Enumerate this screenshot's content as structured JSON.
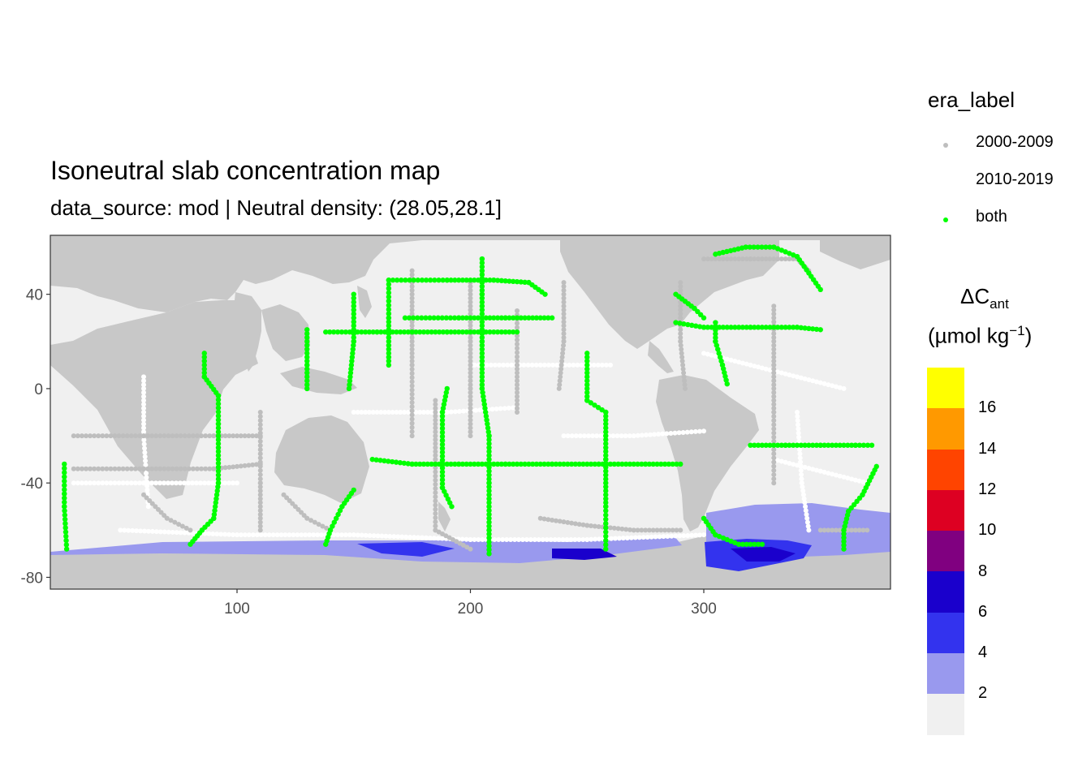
{
  "title": "Isoneutral slab concentration map",
  "subtitle": "data_source: mod | Neutral density: (28.05,28.1]",
  "chart_data": {
    "type": "scatter",
    "title": "Isoneutral slab concentration map",
    "subtitle": "data_source: mod | Neutral density: (28.05,28.1]",
    "xlim": [
      20,
      380
    ],
    "ylim": [
      -85,
      65
    ],
    "x_ticks": [
      100,
      200,
      300
    ],
    "x_tick_labels": [
      "100",
      "200",
      "300"
    ],
    "y_ticks": [
      40,
      0,
      -40,
      -80
    ],
    "y_tick_labels": [
      "40",
      "0",
      "-40",
      "-80"
    ],
    "grid": false,
    "legend_era": {
      "title": "era_label",
      "placement": "right",
      "entries": [
        {
          "label": "2000-2009",
          "color": "#bebebe"
        },
        {
          "label": "2010-2019",
          "color": "#ffffff"
        },
        {
          "label": "both",
          "color": "#00ff00"
        }
      ]
    },
    "colorbar": {
      "title_main": "ΔC",
      "title_sub": "ant",
      "unit_main": "(µmol kg",
      "unit_sup": "−1",
      "unit_close": ")",
      "colors": [
        "#f0f0f0",
        "#9999ee",
        "#3333ee",
        "#1a00cc",
        "#800080",
        "#dd0022",
        "#ff4400",
        "#ff9900",
        "#ffff00"
      ],
      "tick_labels": [
        "2",
        "4",
        "6",
        "8",
        "10",
        "12",
        "14",
        "16"
      ]
    },
    "tracks_both": [
      [
        [
          26,
          -32
        ],
        [
          26,
          -50
        ],
        [
          27,
          -68
        ]
      ],
      [
        [
          86,
          15
        ],
        [
          86,
          5
        ],
        [
          92,
          -3
        ],
        [
          92,
          -15
        ],
        [
          92,
          -40
        ],
        [
          90,
          -55
        ],
        [
          85,
          -60
        ],
        [
          80,
          -66
        ]
      ],
      [
        [
          150,
          -43
        ],
        [
          145,
          -50
        ],
        [
          140,
          -60
        ],
        [
          138,
          -66
        ]
      ],
      [
        [
          138,
          24
        ],
        [
          150,
          24
        ],
        [
          160,
          24
        ],
        [
          175,
          24
        ],
        [
          190,
          24
        ],
        [
          205,
          24
        ],
        [
          220,
          24
        ]
      ],
      [
        [
          165,
          46
        ],
        [
          190,
          46
        ],
        [
          210,
          46
        ],
        [
          225,
          45
        ],
        [
          232,
          40
        ]
      ],
      [
        [
          205,
          55
        ],
        [
          205,
          40
        ],
        [
          205,
          20
        ],
        [
          205,
          0
        ],
        [
          208,
          -20
        ],
        [
          208,
          -40
        ],
        [
          208,
          -60
        ],
        [
          208,
          -70
        ]
      ],
      [
        [
          190,
          0
        ],
        [
          188,
          -10
        ],
        [
          188,
          -22
        ],
        [
          188,
          -32
        ],
        [
          188,
          -42
        ],
        [
          192,
          -50
        ]
      ],
      [
        [
          158,
          -30
        ],
        [
          175,
          -32
        ],
        [
          195,
          -32
        ],
        [
          215,
          -32
        ],
        [
          235,
          -32
        ],
        [
          255,
          -32
        ],
        [
          275,
          -32
        ],
        [
          290,
          -32
        ]
      ],
      [
        [
          250,
          15
        ],
        [
          250,
          -5
        ],
        [
          258,
          -10
        ],
        [
          258,
          -30
        ],
        [
          258,
          -50
        ],
        [
          258,
          -68
        ]
      ],
      [
        [
          172,
          30
        ],
        [
          195,
          30
        ],
        [
          215,
          30
        ],
        [
          235,
          30
        ]
      ],
      [
        [
          130,
          25
        ],
        [
          130,
          10
        ],
        [
          130,
          0
        ]
      ],
      [
        [
          150,
          40
        ],
        [
          150,
          20
        ],
        [
          148,
          0
        ]
      ],
      [
        [
          165,
          46
        ],
        [
          165,
          30
        ],
        [
          165,
          10
        ]
      ],
      [
        [
          288,
          28
        ],
        [
          300,
          26
        ],
        [
          320,
          26
        ],
        [
          340,
          26
        ],
        [
          350,
          25
        ]
      ],
      [
        [
          305,
          57
        ],
        [
          318,
          60
        ],
        [
          330,
          60
        ],
        [
          340,
          56
        ],
        [
          350,
          42
        ]
      ],
      [
        [
          305,
          28
        ],
        [
          305,
          20
        ],
        [
          308,
          10
        ],
        [
          310,
          2
        ]
      ],
      [
        [
          320,
          -24
        ],
        [
          335,
          -24
        ],
        [
          350,
          -24
        ],
        [
          365,
          -24
        ],
        [
          372,
          -24
        ]
      ],
      [
        [
          374,
          -33
        ],
        [
          368,
          -45
        ],
        [
          362,
          -52
        ],
        [
          360,
          -60
        ],
        [
          360,
          -68
        ]
      ],
      [
        [
          300,
          -55
        ],
        [
          305,
          -62
        ],
        [
          315,
          -66
        ],
        [
          325,
          -66
        ]
      ],
      [
        [
          288,
          40
        ],
        [
          296,
          34
        ],
        [
          300,
          30
        ]
      ]
    ],
    "tracks_2000_2009": [
      [
        [
          30,
          -20
        ],
        [
          60,
          -20
        ],
        [
          90,
          -20
        ],
        [
          110,
          -20
        ]
      ],
      [
        [
          30,
          -34
        ],
        [
          60,
          -34
        ],
        [
          90,
          -34
        ],
        [
          110,
          -32
        ]
      ],
      [
        [
          220,
          33
        ],
        [
          220,
          10
        ],
        [
          220,
          -10
        ]
      ],
      [
        [
          185,
          -5
        ],
        [
          185,
          -30
        ],
        [
          185,
          -60
        ],
        [
          200,
          -68
        ]
      ],
      [
        [
          290,
          45
        ],
        [
          290,
          20
        ],
        [
          292,
          0
        ]
      ],
      [
        [
          330,
          35
        ],
        [
          330,
          10
        ],
        [
          330,
          -10
        ],
        [
          330,
          -40
        ]
      ],
      [
        [
          110,
          -10
        ],
        [
          110,
          -40
        ],
        [
          110,
          -60
        ]
      ],
      [
        [
          200,
          45
        ],
        [
          200,
          20
        ],
        [
          200,
          0
        ],
        [
          200,
          -20
        ]
      ],
      [
        [
          175,
          50
        ],
        [
          175,
          30
        ],
        [
          175,
          10
        ],
        [
          175,
          -20
        ]
      ],
      [
        [
          240,
          45
        ],
        [
          240,
          20
        ],
        [
          238,
          0
        ]
      ],
      [
        [
          300,
          55
        ],
        [
          320,
          55
        ],
        [
          340,
          55
        ],
        [
          345,
          50
        ]
      ],
      [
        [
          350,
          -60
        ],
        [
          360,
          -60
        ],
        [
          370,
          -60
        ]
      ],
      [
        [
          230,
          -55
        ],
        [
          250,
          -58
        ],
        [
          270,
          -60
        ],
        [
          290,
          -60
        ]
      ],
      [
        [
          60,
          -45
        ],
        [
          70,
          -55
        ],
        [
          80,
          -60
        ]
      ],
      [
        [
          120,
          -45
        ],
        [
          130,
          -55
        ],
        [
          140,
          -60
        ]
      ]
    ],
    "tracks_2010_2019": [
      [
        [
          30,
          -40
        ],
        [
          60,
          -40
        ],
        [
          100,
          -40
        ]
      ],
      [
        [
          150,
          -10
        ],
        [
          170,
          -10
        ],
        [
          190,
          -10
        ],
        [
          220,
          -8
        ]
      ],
      [
        [
          240,
          -20
        ],
        [
          270,
          -20
        ],
        [
          300,
          -18
        ]
      ],
      [
        [
          330,
          -30
        ],
        [
          350,
          -35
        ],
        [
          370,
          -40
        ]
      ],
      [
        [
          50,
          -60
        ],
        [
          100,
          -62
        ],
        [
          150,
          -62
        ],
        [
          200,
          -64
        ],
        [
          250,
          -64
        ],
        [
          300,
          -62
        ]
      ],
      [
        [
          300,
          15
        ],
        [
          320,
          10
        ],
        [
          340,
          5
        ],
        [
          360,
          0
        ]
      ],
      [
        [
          60,
          5
        ],
        [
          60,
          -20
        ],
        [
          62,
          -50
        ]
      ],
      [
        [
          340,
          -10
        ],
        [
          342,
          -40
        ],
        [
          345,
          -60
        ]
      ],
      [
        [
          200,
          10
        ],
        [
          230,
          10
        ],
        [
          260,
          10
        ]
      ]
    ]
  }
}
